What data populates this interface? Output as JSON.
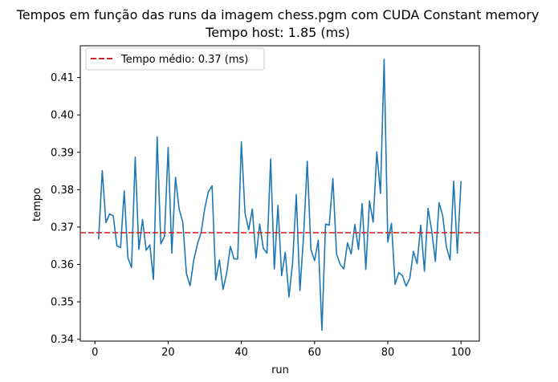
{
  "chart_data": {
    "type": "line",
    "title": "Tempos em função das runs da imagem chess.pgm com CUDA Constant memory",
    "subtitle": "Tempo host: 1.85 (ms)",
    "xlabel": "run",
    "ylabel": "tempo",
    "xlim": [
      -4,
      105
    ],
    "ylim": [
      0.3395,
      0.4185
    ],
    "x_ticks": [
      0,
      20,
      40,
      60,
      80,
      100
    ],
    "y_ticks": [
      0.34,
      0.35,
      0.36,
      0.37,
      0.38,
      0.39,
      0.4,
      0.41
    ],
    "legend_position": "top-left",
    "grid": false,
    "series": [
      {
        "color": "#1f77b4",
        "x": [
          1,
          2,
          3,
          4,
          5,
          6,
          7,
          8,
          9,
          10,
          11,
          12,
          13,
          14,
          15,
          16,
          17,
          18,
          19,
          20,
          21,
          22,
          23,
          24,
          25,
          26,
          27,
          28,
          29,
          30,
          31,
          32,
          33,
          34,
          35,
          36,
          37,
          38,
          39,
          40,
          41,
          42,
          43,
          44,
          45,
          46,
          47,
          48,
          49,
          50,
          51,
          52,
          53,
          54,
          55,
          56,
          57,
          58,
          59,
          60,
          61,
          62,
          63,
          64,
          65,
          66,
          67,
          68,
          69,
          70,
          71,
          72,
          73,
          74,
          75,
          76,
          77,
          78,
          79,
          80,
          81,
          82,
          83,
          84,
          85,
          86,
          87,
          88,
          89,
          90,
          91,
          92,
          93,
          94,
          95,
          96,
          97,
          98,
          99,
          100
        ],
        "values": [
          0.3667,
          0.3851,
          0.3712,
          0.3735,
          0.373,
          0.365,
          0.3645,
          0.3797,
          0.3618,
          0.3592,
          0.3887,
          0.364,
          0.372,
          0.3638,
          0.3652,
          0.356,
          0.3941,
          0.3655,
          0.3675,
          0.3913,
          0.363,
          0.3833,
          0.3748,
          0.3713,
          0.3575,
          0.3543,
          0.3612,
          0.3655,
          0.3685,
          0.375,
          0.3795,
          0.381,
          0.3558,
          0.3612,
          0.3533,
          0.3578,
          0.3648,
          0.3615,
          0.3615,
          0.3928,
          0.3737,
          0.3693,
          0.3748,
          0.3617,
          0.3708,
          0.3643,
          0.363,
          0.3882,
          0.3588,
          0.3758,
          0.357,
          0.3632,
          0.3513,
          0.3605,
          0.3787,
          0.353,
          0.3677,
          0.3876,
          0.364,
          0.361,
          0.3665,
          0.3424,
          0.3708,
          0.3705,
          0.383,
          0.3628,
          0.36,
          0.3588,
          0.3658,
          0.3628,
          0.3707,
          0.364,
          0.3763,
          0.3587,
          0.377,
          0.3713,
          0.3901,
          0.379,
          0.4149,
          0.366,
          0.371,
          0.3547,
          0.3578,
          0.357,
          0.3542,
          0.3562,
          0.3635,
          0.3602,
          0.3705,
          0.3582,
          0.375,
          0.369,
          0.3608,
          0.3765,
          0.373,
          0.3648,
          0.3612,
          0.3823,
          0.363,
          0.3823
        ]
      }
    ],
    "hlines": [
      {
        "label": "Tempo médio: 0.37 (ms)",
        "value": 0.3685,
        "color": "#d62728",
        "style": "dashed"
      }
    ]
  }
}
